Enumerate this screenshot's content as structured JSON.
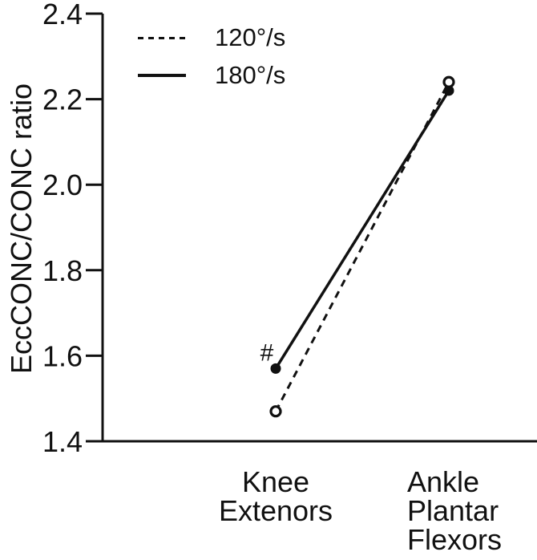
{
  "figure": {
    "background": "#ffffff",
    "foreground": "#111111"
  },
  "chart_data": {
    "type": "line",
    "title": "",
    "xlabel": "",
    "ylabel": "EccCONC/CONC ratio",
    "categories": [
      "Knee\nExtenors",
      "Ankle\nPlantar\nFlexors"
    ],
    "ylim": [
      1.4,
      2.4
    ],
    "yticks": [
      {
        "value": 1.4,
        "label": "1.4"
      },
      {
        "value": 1.6,
        "label": "1.6"
      },
      {
        "value": 1.8,
        "label": "1.8"
      },
      {
        "value": 2.0,
        "label": "2.0"
      },
      {
        "value": 2.2,
        "label": "2.2"
      },
      {
        "value": 2.4,
        "label": "2.4"
      }
    ],
    "grid": false,
    "legend_position": "top-left",
    "series": [
      {
        "name": "120°/s",
        "line_style": "dashed",
        "marker": "open-circle",
        "values": [
          1.47,
          2.24
        ]
      },
      {
        "name": "180°/s",
        "line_style": "solid",
        "marker": "filled-circle",
        "values": [
          1.57,
          2.22
        ]
      }
    ],
    "annotations": [
      {
        "text": "#",
        "attached_to_series": "180°/s",
        "attached_to_category_index": 0,
        "position": "above-left-of-point"
      }
    ]
  }
}
